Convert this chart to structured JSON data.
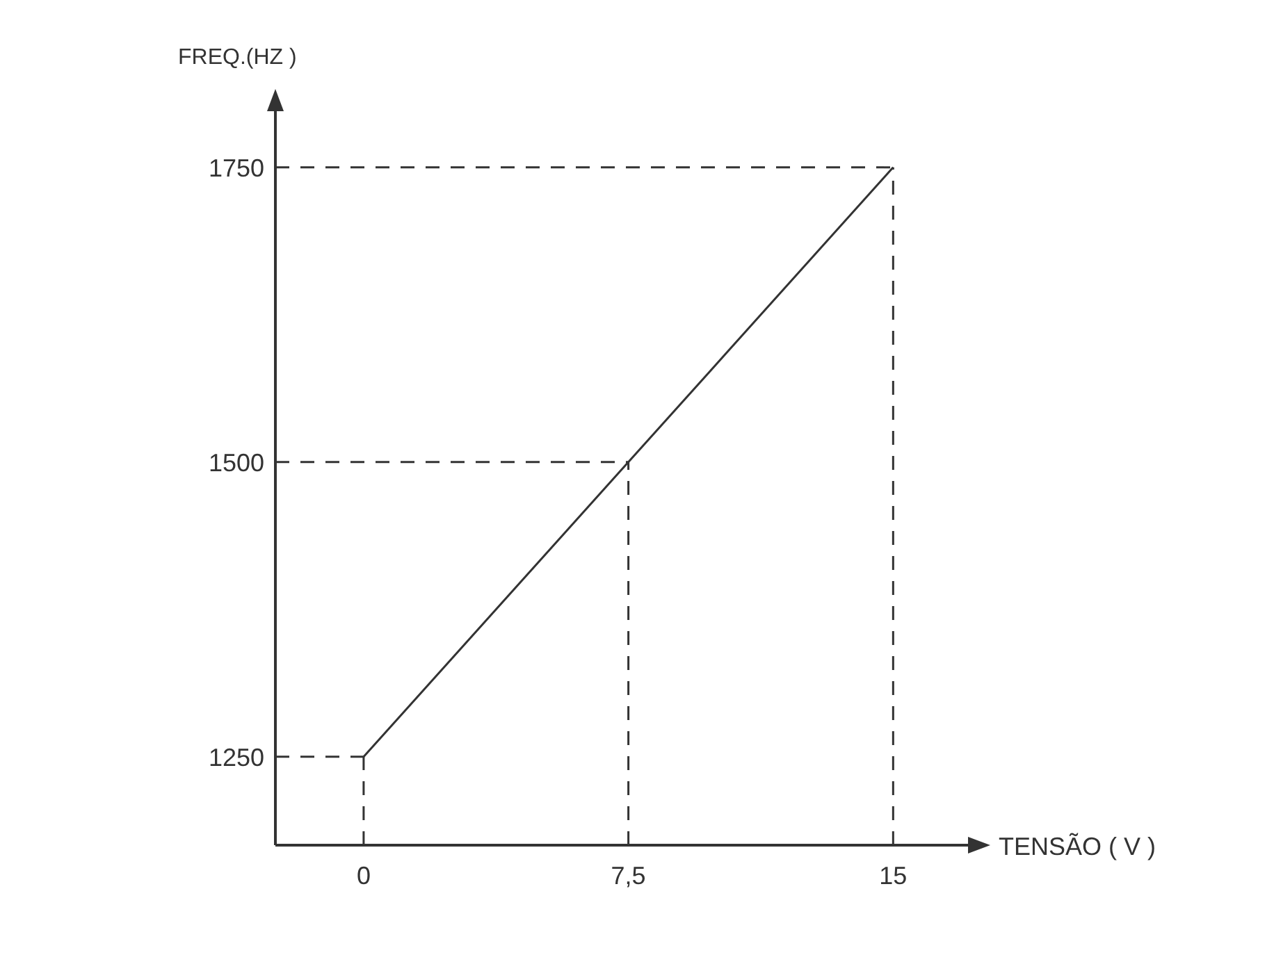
{
  "chart_data": {
    "type": "line",
    "xlabel": "TENSÃO ( V )",
    "ylabel": "FREQ.(HZ )",
    "x": [
      0,
      7.5,
      15
    ],
    "series": [
      {
        "color": "#333333",
        "values": [
          1250,
          1500,
          1750
        ]
      }
    ],
    "xlim": [
      -2.5,
      17.2
    ],
    "ylim": [
      1175,
      1800
    ],
    "xticks": [
      0,
      {
        "value": 7.5,
        "label": "7,5"
      },
      15
    ],
    "yticks": [
      1250,
      1500,
      1750
    ],
    "ref_lines": [
      {
        "axis": "y",
        "value": 1250,
        "line_style": "dashed"
      },
      {
        "axis": "y",
        "value": 1500,
        "line_style": "dashed"
      },
      {
        "axis": "y",
        "value": 1750,
        "line_style": "dashed"
      },
      {
        "axis": "x",
        "value": 0,
        "line_style": "dashed"
      },
      {
        "axis": "x",
        "value": 7.5,
        "line_style": "dashed"
      },
      {
        "axis": "x",
        "value": 15,
        "line_style": "dashed"
      }
    ],
    "grid": false,
    "legend": false,
    "marker": "none",
    "line_style": "solid"
  }
}
